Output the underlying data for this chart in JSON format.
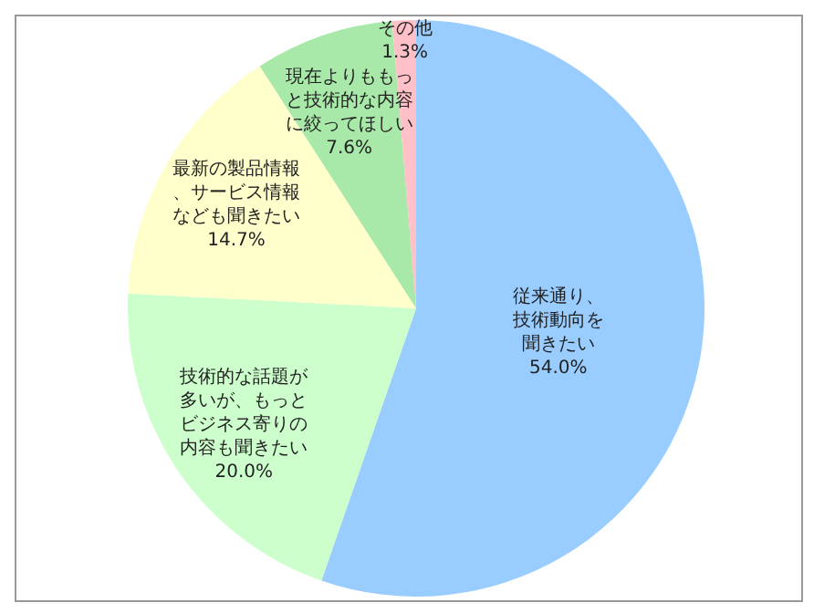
{
  "chart_data": {
    "type": "pie",
    "categories": [
      "従来通り、技術動向を聞きたい",
      "技術的な話題が多いが、もっとビジネス寄りの内容も聞きたい",
      "最新の製品情報、サービス情報なども聞きたい",
      "現在よりももっと技術的な内容に絞ってほしい",
      "その他"
    ],
    "values": [
      54.0,
      20.0,
      14.7,
      7.6,
      1.3
    ],
    "value_labels": [
      "54.0%",
      "20.0%",
      "14.7%",
      "7.6%",
      "1.3%"
    ],
    "colors": [
      "#99ccff",
      "#ccffcc",
      "#ffffcc",
      "#a8e8a8",
      "#ffc0c8"
    ],
    "legend": false
  }
}
